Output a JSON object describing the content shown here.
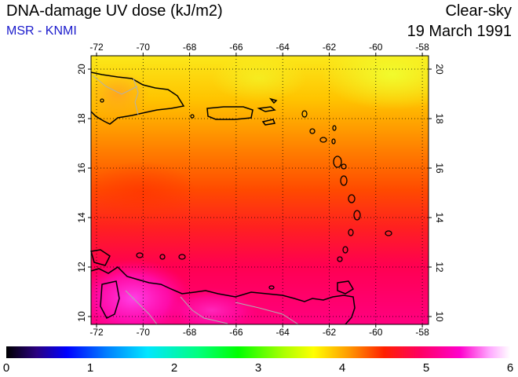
{
  "header": {
    "title": "DNA-damage UV dose (kJ/m2)",
    "source": "MSR - KNMI",
    "condition": "Clear-sky",
    "date": "19 March 1991"
  },
  "map": {
    "lon_ticks": [
      "-72",
      "-70",
      "-68",
      "-66",
      "-64",
      "-62",
      "-60",
      "-58"
    ],
    "lat_ticks": [
      "20",
      "18",
      "16",
      "14",
      "12",
      "10"
    ]
  },
  "colorbar": {
    "labels": [
      "0",
      "1",
      "2",
      "3",
      "4",
      "5",
      "6"
    ],
    "colors": [
      "#000000",
      "#0000ff",
      "#00e6ff",
      "#00ff00",
      "#ffff00",
      "#ff9900",
      "#ff2000",
      "#ff00cc",
      "#ffffff"
    ]
  }
}
